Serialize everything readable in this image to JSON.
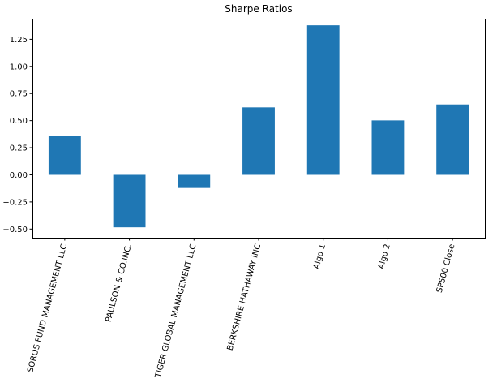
{
  "chart_data": {
    "type": "bar",
    "title": "Sharpe Ratios",
    "xlabel": "",
    "ylabel": "",
    "categories": [
      "SOROS FUND MANAGEMENT LLC",
      "PAULSON & CO.INC.",
      "TIGER GLOBAL MANAGEMENT LLC",
      "BERKSHIRE HATHAWAY INC",
      "Algo 1",
      "Algo 2",
      "SP500 Close"
    ],
    "values": [
      0.356,
      -0.484,
      -0.121,
      0.622,
      1.379,
      0.502,
      0.649
    ],
    "ylim": [
      -0.58,
      1.44
    ],
    "yticks": [
      -0.5,
      -0.25,
      0.0,
      0.25,
      0.5,
      0.75,
      1.0,
      1.25
    ],
    "ytick_labels": [
      "−0.50",
      "−0.25",
      "0.00",
      "0.25",
      "0.50",
      "0.75",
      "1.00",
      "1.25"
    ],
    "bar_color": "#1f77b4",
    "grid": false,
    "legend": "none"
  }
}
